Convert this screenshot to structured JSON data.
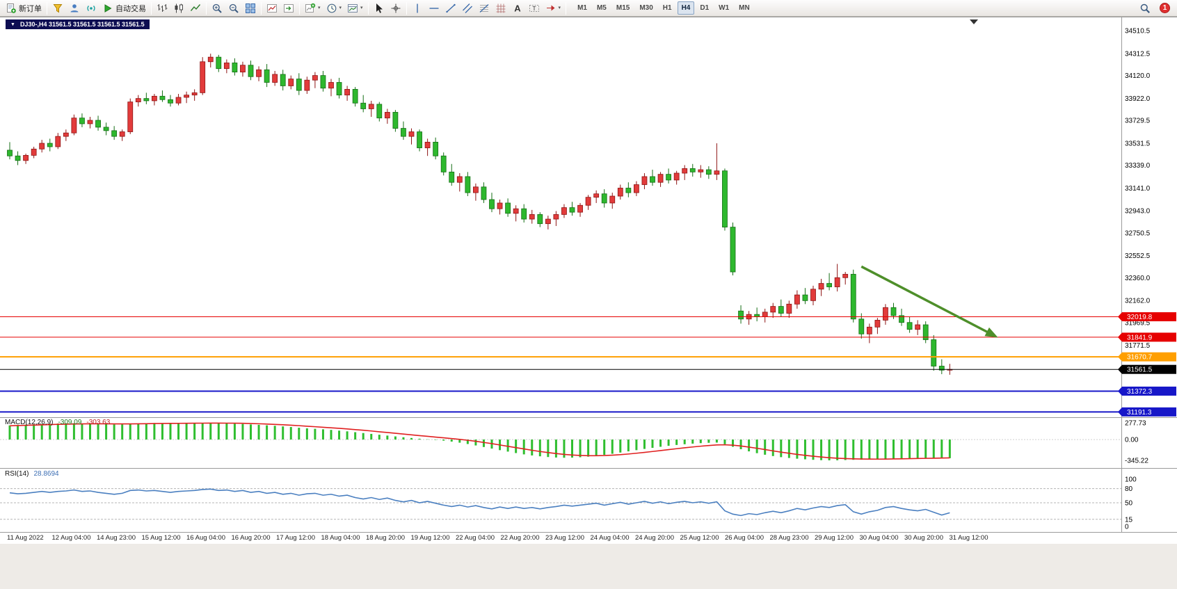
{
  "toolbar": {
    "notification_count": "1",
    "active_timeframe": "H4",
    "timeframes": [
      "M1",
      "M5",
      "M15",
      "M30",
      "H1",
      "H4",
      "D1",
      "W1",
      "MN"
    ],
    "items": [
      {
        "icon": "new-order",
        "name": "new-order-button",
        "label": "新订单"
      },
      {
        "sep": true
      },
      {
        "icon": "funnel",
        "name": "market-watch-button"
      },
      {
        "icon": "profile",
        "name": "data-window-button"
      },
      {
        "icon": "signal",
        "name": "signals-button"
      },
      {
        "icon": "autotrade",
        "name": "autotrade-button",
        "label": "自动交易"
      },
      {
        "sep": true
      },
      {
        "icon": "bars",
        "name": "bar-chart-button"
      },
      {
        "icon": "candles",
        "name": "candlestick-chart-button"
      },
      {
        "icon": "line",
        "name": "line-chart-button"
      },
      {
        "sep": true
      },
      {
        "icon": "zoom-in",
        "name": "zoom-in-button"
      },
      {
        "icon": "zoom-out",
        "name": "zoom-out-button"
      },
      {
        "icon": "tile",
        "name": "tile-windows-button"
      },
      {
        "sep": true
      },
      {
        "icon": "chart-up",
        "name": "auto-scroll-button"
      },
      {
        "icon": "chart-shift",
        "name": "chart-shift-button"
      },
      {
        "sep": true
      },
      {
        "icon": "new-chart",
        "name": "new-chart-button",
        "arrow": true
      },
      {
        "icon": "clock",
        "name": "periods-button",
        "arrow": true
      },
      {
        "icon": "template",
        "name": "templates-button",
        "arrow": true
      },
      {
        "sep": true
      },
      {
        "icon": "cursor",
        "name": "cursor-button"
      },
      {
        "icon": "crosshair",
        "name": "crosshair-button"
      },
      {
        "sep": true
      },
      {
        "icon": "vline",
        "name": "vertical-line-button"
      },
      {
        "icon": "hline",
        "name": "horizontal-line-button"
      },
      {
        "icon": "trendline",
        "name": "trendline-button"
      },
      {
        "icon": "channel",
        "name": "equidistant-channel-button"
      },
      {
        "icon": "fibo",
        "name": "fibonacci-button"
      },
      {
        "icon": "grid-tool",
        "name": "gann-grid-button"
      },
      {
        "icon": "text",
        "name": "text-button"
      },
      {
        "icon": "label",
        "name": "text-label-button"
      },
      {
        "icon": "shapes",
        "name": "arrows-button",
        "arrow": true
      },
      {
        "sep": true
      }
    ]
  },
  "chart_header": {
    "arrow_glyph": "▼",
    "title": "DJ30-,H4  31561.5 31561.5 31561.5 31561.5"
  },
  "chart_data": {
    "type": "candlestick",
    "symbol": "DJ30-",
    "period": "H4",
    "colors": {
      "up": "#e23b3b",
      "up_stroke": "#8e1414",
      "down": "#2eb82e",
      "down_stroke": "#156e15",
      "background": "#ffffff"
    },
    "price_axis": {
      "view_max": 34620,
      "view_min": 31145,
      "ticks": [
        "34510.5",
        "34312.5",
        "34120.0",
        "33922.0",
        "33729.5",
        "33531.5",
        "33339.0",
        "33141.0",
        "32943.0",
        "32750.5",
        "32552.5",
        "32360.0",
        "32162.0",
        "31969.5",
        "31771.5"
      ]
    },
    "hlines": [
      {
        "price": 32019.8,
        "label": "32019.8",
        "color": "#e60000",
        "width": 1
      },
      {
        "price": 31841.9,
        "label": "31841.9",
        "color": "#e60000",
        "width": 1
      },
      {
        "price": 31670.7,
        "label": "31670.7",
        "color": "#ff9f00",
        "width": 2
      },
      {
        "price": 31561.5,
        "label": "31561.5",
        "color": "#000000",
        "width": 1
      },
      {
        "price": 31372.3,
        "label": "31372.3",
        "color": "#1717c8",
        "width": 2
      },
      {
        "price": 31191.3,
        "label": "31191.3",
        "color": "#1717c8",
        "width": 2
      }
    ],
    "trend_arrow": {
      "from_bar": 106,
      "from_price": 32457,
      "to_bar": 123,
      "to_price": 31839,
      "color": "#4e8f2a"
    },
    "time_labels": [
      "11 Aug 2022",
      "12 Aug 04:00",
      "14 Aug 23:00",
      "15 Aug 12:00",
      "16 Aug 04:00",
      "16 Aug 20:00",
      "17 Aug 12:00",
      "18 Aug 04:00",
      "18 Aug 20:00",
      "19 Aug 12:00",
      "22 Aug 04:00",
      "22 Aug 20:00",
      "23 Aug 12:00",
      "24 Aug 04:00",
      "24 Aug 20:00",
      "25 Aug 12:00",
      "26 Aug 04:00",
      "28 Aug 23:00",
      "29 Aug 12:00",
      "30 Aug 04:00",
      "30 Aug 20:00",
      "31 Aug 12:00"
    ],
    "candles": [
      [
        33470,
        33540,
        33390,
        33420
      ],
      [
        33420,
        33460,
        33340,
        33380
      ],
      [
        33380,
        33440,
        33350,
        33425
      ],
      [
        33425,
        33500,
        33400,
        33480
      ],
      [
        33480,
        33560,
        33450,
        33530
      ],
      [
        33530,
        33570,
        33460,
        33500
      ],
      [
        33500,
        33620,
        33480,
        33590
      ],
      [
        33590,
        33650,
        33550,
        33620
      ],
      [
        33620,
        33780,
        33600,
        33750
      ],
      [
        33750,
        33790,
        33670,
        33700
      ],
      [
        33700,
        33760,
        33660,
        33730
      ],
      [
        33730,
        33770,
        33640,
        33670
      ],
      [
        33670,
        33710,
        33600,
        33640
      ],
      [
        33640,
        33680,
        33560,
        33590
      ],
      [
        33590,
        33650,
        33550,
        33630
      ],
      [
        33630,
        33920,
        33610,
        33890
      ],
      [
        33890,
        33950,
        33850,
        33920
      ],
      [
        33920,
        33970,
        33870,
        33900
      ],
      [
        33900,
        33960,
        33860,
        33940
      ],
      [
        33940,
        33990,
        33890,
        33910
      ],
      [
        33910,
        33950,
        33850,
        33880
      ],
      [
        33880,
        33960,
        33860,
        33930
      ],
      [
        33930,
        33980,
        33880,
        33950
      ],
      [
        33950,
        34000,
        33900,
        33970
      ],
      [
        33970,
        34280,
        33950,
        34240
      ],
      [
        34240,
        34310,
        34190,
        34280
      ],
      [
        34280,
        34300,
        34150,
        34180
      ],
      [
        34180,
        34260,
        34140,
        34230
      ],
      [
        34230,
        34270,
        34120,
        34150
      ],
      [
        34150,
        34240,
        34110,
        34210
      ],
      [
        34210,
        34250,
        34080,
        34110
      ],
      [
        34110,
        34200,
        34070,
        34170
      ],
      [
        34170,
        34220,
        34020,
        34060
      ],
      [
        34060,
        34160,
        34030,
        34130
      ],
      [
        34130,
        34170,
        33990,
        34030
      ],
      [
        34030,
        34120,
        34000,
        34090
      ],
      [
        34090,
        34140,
        33950,
        33990
      ],
      [
        33990,
        34110,
        33960,
        34080
      ],
      [
        34080,
        34150,
        34010,
        34120
      ],
      [
        34120,
        34160,
        33980,
        34010
      ],
      [
        34010,
        34090,
        33940,
        34060
      ],
      [
        34060,
        34100,
        33920,
        33950
      ],
      [
        33950,
        34030,
        33900,
        34000
      ],
      [
        34000,
        34020,
        33850,
        33880
      ],
      [
        33880,
        33950,
        33800,
        33830
      ],
      [
        33830,
        33900,
        33760,
        33870
      ],
      [
        33870,
        33890,
        33720,
        33750
      ],
      [
        33750,
        33830,
        33700,
        33800
      ],
      [
        33800,
        33820,
        33630,
        33660
      ],
      [
        33660,
        33720,
        33560,
        33590
      ],
      [
        33590,
        33660,
        33520,
        33630
      ],
      [
        33630,
        33650,
        33460,
        33490
      ],
      [
        33490,
        33570,
        33420,
        33540
      ],
      [
        33540,
        33580,
        33390,
        33420
      ],
      [
        33420,
        33450,
        33250,
        33280
      ],
      [
        33280,
        33350,
        33160,
        33190
      ],
      [
        33190,
        33270,
        33110,
        33240
      ],
      [
        33240,
        33280,
        33070,
        33100
      ],
      [
        33100,
        33180,
        33030,
        33150
      ],
      [
        33150,
        33190,
        33010,
        33040
      ],
      [
        33040,
        33100,
        32930,
        32960
      ],
      [
        32960,
        33040,
        32910,
        33010
      ],
      [
        33010,
        33050,
        32890,
        32920
      ],
      [
        32920,
        32990,
        32850,
        32960
      ],
      [
        32960,
        33000,
        32840,
        32870
      ],
      [
        32870,
        32950,
        32830,
        32910
      ],
      [
        32910,
        32930,
        32800,
        32830
      ],
      [
        32830,
        32900,
        32780,
        32870
      ],
      [
        32870,
        32940,
        32810,
        32910
      ],
      [
        32910,
        33000,
        32880,
        32970
      ],
      [
        32970,
        33020,
        32900,
        32930
      ],
      [
        32930,
        33010,
        32890,
        32990
      ],
      [
        32990,
        33080,
        32950,
        33060
      ],
      [
        33060,
        33120,
        33010,
        33090
      ],
      [
        33090,
        33130,
        32970,
        33010
      ],
      [
        33010,
        33100,
        32960,
        33070
      ],
      [
        33070,
        33170,
        33040,
        33140
      ],
      [
        33140,
        33190,
        33060,
        33100
      ],
      [
        33100,
        33200,
        33070,
        33170
      ],
      [
        33170,
        33270,
        33130,
        33240
      ],
      [
        33240,
        33300,
        33160,
        33190
      ],
      [
        33190,
        33280,
        33150,
        33260
      ],
      [
        33260,
        33310,
        33180,
        33210
      ],
      [
        33210,
        33290,
        33170,
        33270
      ],
      [
        33270,
        33340,
        33210,
        33310
      ],
      [
        33310,
        33350,
        33240,
        33280
      ],
      [
        33280,
        33340,
        33230,
        33300
      ],
      [
        33300,
        33330,
        33220,
        33260
      ],
      [
        33260,
        33530,
        33210,
        33290
      ],
      [
        33290,
        33310,
        32770,
        32800
      ],
      [
        32800,
        32840,
        32380,
        32410
      ],
      [
        32070,
        32120,
        31960,
        32000
      ],
      [
        32000,
        32070,
        31950,
        32040
      ],
      [
        32040,
        32100,
        31980,
        32020
      ],
      [
        32020,
        32090,
        31970,
        32060
      ],
      [
        32060,
        32140,
        32010,
        32110
      ],
      [
        32110,
        32170,
        32020,
        32050
      ],
      [
        32050,
        32160,
        32010,
        32130
      ],
      [
        32130,
        32250,
        32090,
        32210
      ],
      [
        32210,
        32270,
        32130,
        32160
      ],
      [
        32160,
        32290,
        32120,
        32260
      ],
      [
        32260,
        32350,
        32200,
        32310
      ],
      [
        32310,
        32400,
        32250,
        32280
      ],
      [
        32280,
        32480,
        32240,
        32360
      ],
      [
        32360,
        32410,
        32300,
        32390
      ],
      [
        32390,
        32430,
        31970,
        32000
      ],
      [
        32000,
        32050,
        31830,
        31870
      ],
      [
        31870,
        31960,
        31790,
        31930
      ],
      [
        31930,
        32010,
        31870,
        31990
      ],
      [
        31990,
        32130,
        31950,
        32100
      ],
      [
        32100,
        32140,
        32000,
        32030
      ],
      [
        32030,
        32090,
        31940,
        31970
      ],
      [
        31970,
        32020,
        31880,
        31910
      ],
      [
        31910,
        31990,
        31860,
        31950
      ],
      [
        31950,
        31980,
        31790,
        31820
      ],
      [
        31820,
        31860,
        31550,
        31590
      ],
      [
        31590,
        31650,
        31520,
        31555
      ],
      [
        31555,
        31610,
        31515,
        31561.5
      ]
    ],
    "macd": {
      "name": "MACD(12,26,9)",
      "value_main": "-309.09",
      "value_signal": "-303.63",
      "scale": [
        "277.73",
        "0.00",
        "-345.22"
      ],
      "hist_color": "#2fbe2f",
      "signal_color": "#e02020",
      "histogram": [
        235,
        242,
        248,
        252,
        258,
        262,
        266,
        268,
        270,
        266,
        262,
        258,
        255,
        250,
        252,
        258,
        266,
        272,
        274,
        272,
        270,
        272,
        274,
        277,
        277,
        275,
        270,
        266,
        262,
        258,
        250,
        244,
        236,
        228,
        218,
        208,
        196,
        186,
        178,
        170,
        160,
        148,
        136,
        122,
        108,
        94,
        80,
        66,
        52,
        38,
        26,
        14,
        4,
        -6,
        -18,
        -34,
        -52,
        -74,
        -98,
        -124,
        -150,
        -176,
        -200,
        -224,
        -246,
        -264,
        -278,
        -290,
        -298,
        -302,
        -300,
        -294,
        -284,
        -270,
        -254,
        -236,
        -216,
        -196,
        -176,
        -156,
        -138,
        -120,
        -104,
        -90,
        -78,
        -68,
        -60,
        -54,
        -50,
        -78,
        -120,
        -160,
        -196,
        -226,
        -252,
        -274,
        -292,
        -306,
        -318,
        -328,
        -336,
        -342,
        -345,
        -344,
        -340,
        -336,
        -334,
        -330,
        -326,
        -322,
        -318,
        -316,
        -314,
        -312,
        -311,
        -310,
        -309.5,
        -309.09
      ],
      "signal": [
        228,
        232,
        236,
        240,
        244,
        248,
        252,
        255,
        258,
        260,
        261,
        261,
        261,
        260,
        260,
        260,
        261,
        263,
        265,
        267,
        268,
        269,
        270,
        271,
        272,
        273,
        273,
        272,
        271,
        270,
        266,
        262,
        257,
        251,
        245,
        238,
        230,
        221,
        213,
        204,
        195,
        186,
        176,
        165,
        154,
        142,
        129,
        117,
        104,
        91,
        78,
        65,
        53,
        41,
        29,
        16,
        3,
        -12,
        -29,
        -48,
        -68,
        -90,
        -112,
        -134,
        -156,
        -178,
        -198,
        -216,
        -232,
        -246,
        -257,
        -264,
        -268,
        -268,
        -265,
        -259,
        -251,
        -240,
        -227,
        -213,
        -198,
        -183,
        -167,
        -152,
        -137,
        -123,
        -110,
        -99,
        -89,
        -87,
        -94,
        -107,
        -125,
        -145,
        -166,
        -188,
        -209,
        -228,
        -246,
        -262,
        -277,
        -290,
        -301,
        -310,
        -316,
        -320,
        -323,
        -324,
        -325,
        -324,
        -322,
        -319.5,
        -317,
        -314.5,
        -312,
        -309.5,
        -306.5,
        -303.63
      ]
    },
    "rsi": {
      "name": "RSI(14)",
      "value": "28.8694",
      "color": "#4a7fc0",
      "levels": [
        {
          "label": "100",
          "value": 100
        },
        {
          "label": "80",
          "value": 80,
          "dashed": true
        },
        {
          "label": "50",
          "value": 50,
          "dashed": true
        },
        {
          "label": "15",
          "value": 15,
          "dashed": true
        },
        {
          "label": "0",
          "value": 0
        }
      ],
      "values": [
        71,
        69,
        70,
        72,
        74,
        72,
        74,
        75,
        77,
        74,
        75,
        72,
        70,
        68,
        70,
        76,
        77,
        75,
        76,
        74,
        72,
        74,
        75,
        76,
        78,
        79,
        76,
        77,
        74,
        76,
        72,
        74,
        70,
        72,
        68,
        70,
        66,
        69,
        70,
        66,
        68,
        64,
        66,
        61,
        58,
        61,
        57,
        60,
        55,
        52,
        55,
        50,
        53,
        49,
        45,
        42,
        45,
        41,
        44,
        40,
        37,
        41,
        38,
        41,
        38,
        40,
        37,
        40,
        42,
        45,
        43,
        45,
        47,
        49,
        45,
        48,
        51,
        47,
        50,
        53,
        49,
        52,
        48,
        51,
        53,
        50,
        52,
        49,
        52,
        33,
        26,
        23,
        27,
        25,
        29,
        32,
        29,
        33,
        38,
        35,
        39,
        42,
        40,
        44,
        46,
        31,
        26,
        31,
        34,
        40,
        42,
        38,
        35,
        33,
        36,
        30,
        24,
        28.87
      ]
    }
  }
}
